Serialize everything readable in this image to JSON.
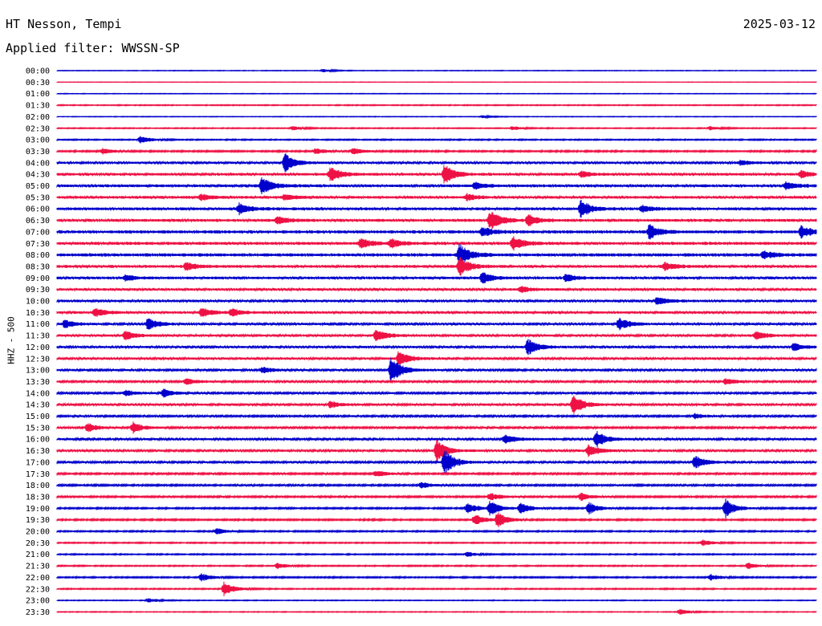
{
  "header": {
    "station": "HT Nesson, Tempi",
    "date": "2025-03-12",
    "filter_label": "Applied filter: WWSSN-SP"
  },
  "channel_label": "HHZ - 500",
  "colors": {
    "even_hour_trace": "#0000cc",
    "half_hour_trace": "#ee1144"
  },
  "chart_data": {
    "type": "line",
    "title": "",
    "xlabel": "",
    "ylabel": "HHZ - 500",
    "rows": [
      "00:00",
      "00:30",
      "01:00",
      "01:30",
      "02:00",
      "02:30",
      "03:00",
      "03:30",
      "04:00",
      "04:30",
      "05:00",
      "05:30",
      "06:00",
      "06:30",
      "07:00",
      "07:30",
      "08:00",
      "08:30",
      "09:00",
      "09:30",
      "10:00",
      "10:30",
      "11:00",
      "11:30",
      "12:00",
      "12:30",
      "13:00",
      "13:30",
      "14:00",
      "14:30",
      "15:00",
      "15:30",
      "16:00",
      "16:30",
      "17:00",
      "17:30",
      "18:00",
      "18:30",
      "19:00",
      "19:30",
      "20:00",
      "20:30",
      "21:00",
      "21:30",
      "22:00",
      "22:30",
      "23:00",
      "23:30"
    ],
    "noise_level": [
      0.3,
      0.2,
      0.3,
      0.5,
      0.3,
      0.5,
      0.6,
      0.8,
      1.2,
      1.4,
      1.5,
      1.4,
      1.5,
      1.5,
      1.6,
      1.6,
      1.7,
      1.5,
      1.4,
      1.3,
      1.3,
      1.3,
      1.2,
      1.2,
      1.2,
      1.2,
      1.1,
      1.1,
      1.0,
      1.2,
      1.0,
      1.0,
      1.2,
      1.2,
      1.1,
      0.9,
      0.9,
      0.9,
      0.8,
      0.8,
      0.7,
      0.6,
      0.6,
      0.6,
      0.7,
      0.6,
      0.4,
      0.4
    ],
    "events": [
      {
        "row": "00:00",
        "t": 0.35,
        "amp": 2
      },
      {
        "row": "02:00",
        "t": 0.56,
        "amp": 1.5
      },
      {
        "row": "02:30",
        "t": 0.31,
        "amp": 2.5
      },
      {
        "row": "02:30",
        "t": 0.6,
        "amp": 2.5
      },
      {
        "row": "02:30",
        "t": 0.86,
        "amp": 2.5
      },
      {
        "row": "03:00",
        "t": 0.11,
        "amp": 5
      },
      {
        "row": "03:30",
        "t": 0.06,
        "amp": 4
      },
      {
        "row": "03:30",
        "t": 0.34,
        "amp": 4
      },
      {
        "row": "03:30",
        "t": 0.39,
        "amp": 4
      },
      {
        "row": "04:00",
        "t": 0.3,
        "amp": 12
      },
      {
        "row": "04:00",
        "t": 0.9,
        "amp": 3
      },
      {
        "row": "04:30",
        "t": 0.36,
        "amp": 10
      },
      {
        "row": "04:30",
        "t": 0.51,
        "amp": 12
      },
      {
        "row": "04:30",
        "t": 0.69,
        "amp": 4
      },
      {
        "row": "04:30",
        "t": 0.98,
        "amp": 5
      },
      {
        "row": "05:00",
        "t": 0.27,
        "amp": 11
      },
      {
        "row": "05:00",
        "t": 0.55,
        "amp": 5
      },
      {
        "row": "05:00",
        "t": 0.96,
        "amp": 5
      },
      {
        "row": "05:30",
        "t": 0.19,
        "amp": 4
      },
      {
        "row": "05:30",
        "t": 0.3,
        "amp": 4
      },
      {
        "row": "05:30",
        "t": 0.54,
        "amp": 4
      },
      {
        "row": "06:00",
        "t": 0.24,
        "amp": 7
      },
      {
        "row": "06:00",
        "t": 0.69,
        "amp": 11
      },
      {
        "row": "06:00",
        "t": 0.77,
        "amp": 4
      },
      {
        "row": "06:30",
        "t": 0.29,
        "amp": 5
      },
      {
        "row": "06:30",
        "t": 0.57,
        "amp": 14
      },
      {
        "row": "06:30",
        "t": 0.62,
        "amp": 7
      },
      {
        "row": "07:00",
        "t": 0.56,
        "amp": 6
      },
      {
        "row": "07:00",
        "t": 0.78,
        "amp": 10
      },
      {
        "row": "07:00",
        "t": 0.98,
        "amp": 8
      },
      {
        "row": "07:30",
        "t": 0.4,
        "amp": 6
      },
      {
        "row": "07:30",
        "t": 0.44,
        "amp": 6
      },
      {
        "row": "07:30",
        "t": 0.6,
        "amp": 10
      },
      {
        "row": "08:00",
        "t": 0.53,
        "amp": 15
      },
      {
        "row": "08:00",
        "t": 0.93,
        "amp": 5
      },
      {
        "row": "08:30",
        "t": 0.17,
        "amp": 5
      },
      {
        "row": "08:30",
        "t": 0.53,
        "amp": 12
      },
      {
        "row": "08:30",
        "t": 0.8,
        "amp": 5
      },
      {
        "row": "09:00",
        "t": 0.09,
        "amp": 4
      },
      {
        "row": "09:00",
        "t": 0.56,
        "amp": 8
      },
      {
        "row": "09:00",
        "t": 0.67,
        "amp": 5
      },
      {
        "row": "09:30",
        "t": 0.61,
        "amp": 4
      },
      {
        "row": "10:00",
        "t": 0.79,
        "amp": 5
      },
      {
        "row": "10:30",
        "t": 0.05,
        "amp": 6
      },
      {
        "row": "10:30",
        "t": 0.19,
        "amp": 6
      },
      {
        "row": "10:30",
        "t": 0.23,
        "amp": 5
      },
      {
        "row": "11:00",
        "t": 0.01,
        "amp": 5
      },
      {
        "row": "11:00",
        "t": 0.12,
        "amp": 8
      },
      {
        "row": "11:00",
        "t": 0.74,
        "amp": 8
      },
      {
        "row": "11:30",
        "t": 0.09,
        "amp": 6
      },
      {
        "row": "11:30",
        "t": 0.42,
        "amp": 8
      },
      {
        "row": "11:30",
        "t": 0.92,
        "amp": 6
      },
      {
        "row": "12:00",
        "t": 0.62,
        "amp": 11
      },
      {
        "row": "12:00",
        "t": 0.97,
        "amp": 5
      },
      {
        "row": "12:30",
        "t": 0.45,
        "amp": 10
      },
      {
        "row": "13:00",
        "t": 0.44,
        "amp": 18
      },
      {
        "row": "13:00",
        "t": 0.27,
        "amp": 4
      },
      {
        "row": "13:30",
        "t": 0.17,
        "amp": 4
      },
      {
        "row": "13:30",
        "t": 0.88,
        "amp": 4
      },
      {
        "row": "14:00",
        "t": 0.09,
        "amp": 4
      },
      {
        "row": "14:00",
        "t": 0.14,
        "amp": 5
      },
      {
        "row": "14:30",
        "t": 0.68,
        "amp": 14
      },
      {
        "row": "14:30",
        "t": 0.36,
        "amp": 4
      },
      {
        "row": "15:00",
        "t": 0.84,
        "amp": 3
      },
      {
        "row": "15:30",
        "t": 0.04,
        "amp": 6
      },
      {
        "row": "15:30",
        "t": 0.1,
        "amp": 7
      },
      {
        "row": "16:00",
        "t": 0.59,
        "amp": 6
      },
      {
        "row": "16:00",
        "t": 0.71,
        "amp": 11
      },
      {
        "row": "16:30",
        "t": 0.5,
        "amp": 13
      },
      {
        "row": "16:30",
        "t": 0.7,
        "amp": 8
      },
      {
        "row": "17:00",
        "t": 0.51,
        "amp": 16
      },
      {
        "row": "17:00",
        "t": 0.84,
        "amp": 8
      },
      {
        "row": "17:30",
        "t": 0.42,
        "amp": 4
      },
      {
        "row": "18:00",
        "t": 0.48,
        "amp": 4
      },
      {
        "row": "18:30",
        "t": 0.57,
        "amp": 5
      },
      {
        "row": "18:30",
        "t": 0.69,
        "amp": 5
      },
      {
        "row": "19:00",
        "t": 0.54,
        "amp": 7
      },
      {
        "row": "19:00",
        "t": 0.57,
        "amp": 9
      },
      {
        "row": "19:00",
        "t": 0.61,
        "amp": 7
      },
      {
        "row": "19:00",
        "t": 0.7,
        "amp": 8
      },
      {
        "row": "19:00",
        "t": 0.88,
        "amp": 12
      },
      {
        "row": "19:30",
        "t": 0.55,
        "amp": 7
      },
      {
        "row": "19:30",
        "t": 0.58,
        "amp": 10
      },
      {
        "row": "20:00",
        "t": 0.21,
        "amp": 4
      },
      {
        "row": "20:30",
        "t": 0.85,
        "amp": 4
      },
      {
        "row": "21:00",
        "t": 0.54,
        "amp": 3
      },
      {
        "row": "21:30",
        "t": 0.29,
        "amp": 4
      },
      {
        "row": "21:30",
        "t": 0.91,
        "amp": 4
      },
      {
        "row": "22:00",
        "t": 0.19,
        "amp": 5
      },
      {
        "row": "22:00",
        "t": 0.86,
        "amp": 4
      },
      {
        "row": "22:30",
        "t": 0.22,
        "amp": 9
      },
      {
        "row": "23:00",
        "t": 0.12,
        "amp": 3
      },
      {
        "row": "23:30",
        "t": 0.82,
        "amp": 4
      }
    ]
  }
}
